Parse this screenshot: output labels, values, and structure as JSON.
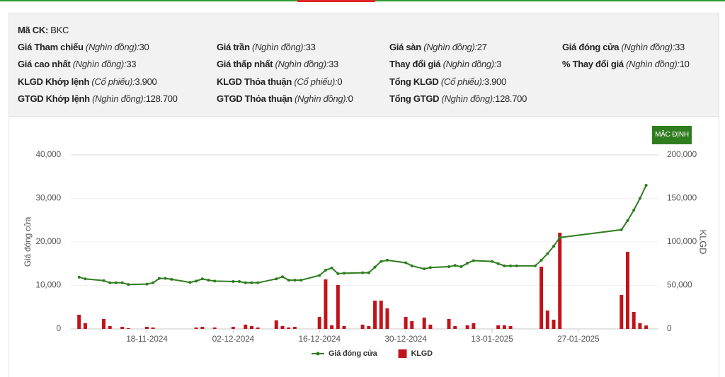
{
  "info": {
    "code": {
      "label": "Mã CK:",
      "value": "BKC"
    },
    "rows": [
      [
        {
          "label": "Giá Tham chiếu",
          "unit": "(Nghìn đồng):",
          "value": "30"
        },
        {
          "label": "Giá trần",
          "unit": "(Nghìn đồng):",
          "value": "33"
        },
        {
          "label": "Giá sàn",
          "unit": "(Nghìn đồng):",
          "value": "27"
        },
        {
          "label": "Giá đóng cửa",
          "unit": "(Nghìn đồng):",
          "value": "33"
        }
      ],
      [
        {
          "label": "Giá cao nhất",
          "unit": "(Nghìn đồng):",
          "value": "33"
        },
        {
          "label": "Giá thấp nhất",
          "unit": "(Nghìn đồng):",
          "value": "33"
        },
        {
          "label": "Thay đổi giá",
          "unit": "(Nghìn đồng):",
          "value": "3"
        },
        {
          "label": "% Thay đổi giá",
          "unit": "(Nghìn đồng):",
          "value": "10"
        }
      ],
      [
        {
          "label": "KLGD Khớp lệnh",
          "unit": "(Cổ phiếu):",
          "value": "3.900"
        },
        {
          "label": "KLGD Thỏa thuận",
          "unit": "(Cổ phiếu):",
          "value": "0"
        },
        {
          "label": "Tổng KLGD",
          "unit": "(Cổ phiếu):",
          "value": "3.900"
        }
      ],
      [
        {
          "label": "GTGD Khớp lệnh",
          "unit": "(Nghìn đồng):",
          "value": "128.700"
        },
        {
          "label": "GTGD Thỏa thuận",
          "unit": "(Nghìn đồng):",
          "value": "0"
        },
        {
          "label": "Tổng GTGD",
          "unit": "(Nghìn đồng):",
          "value": "128.700"
        }
      ]
    ]
  },
  "button": "MẶC ĐỊNH",
  "chart_data": {
    "type": "combo",
    "x": [
      "07-11-2024",
      "08-11-2024",
      "11-11-2024",
      "12-11-2024",
      "13-11-2024",
      "14-11-2024",
      "15-11-2024",
      "18-11-2024",
      "19-11-2024",
      "20-11-2024",
      "21-11-2024",
      "22-11-2024",
      "25-11-2024",
      "26-11-2024",
      "27-11-2024",
      "28-11-2024",
      "29-11-2024",
      "02-12-2024",
      "03-12-2024",
      "04-12-2024",
      "05-12-2024",
      "06-12-2024",
      "09-12-2024",
      "10-12-2024",
      "11-12-2024",
      "12-12-2024",
      "13-12-2024",
      "16-12-2024",
      "17-12-2024",
      "18-12-2024",
      "19-12-2024",
      "20-12-2024",
      "23-12-2024",
      "24-12-2024",
      "25-12-2024",
      "26-12-2024",
      "27-12-2024",
      "30-12-2024",
      "31-12-2024",
      "02-01-2025",
      "03-01-2025",
      "06-01-2025",
      "07-01-2025",
      "08-01-2025",
      "09-01-2025",
      "10-01-2025",
      "13-01-2025",
      "14-01-2025",
      "15-01-2025",
      "16-01-2025",
      "17-01-2025",
      "20-01-2025",
      "21-01-2025",
      "22-01-2025",
      "23-01-2025",
      "24-01-2025",
      "03-02-2025",
      "04-02-2025",
      "05-02-2025",
      "06-02-2025",
      "07-02-2025"
    ],
    "xlim": [
      "06-11-2024",
      "09-02-2025"
    ],
    "xticks": [
      "18-11-2024",
      "02-12-2024",
      "16-12-2024",
      "30-12-2024",
      "13-01-2025",
      "27-01-2025"
    ],
    "ylabel": "Giá đóng cửa",
    "ylim": [
      0,
      40000
    ],
    "yticks": [
      0,
      {
        "value": 10000,
        "label": "10,000"
      },
      {
        "value": 20000,
        "label": "20,000"
      },
      {
        "value": 30000,
        "label": "30,000"
      },
      {
        "value": 40000,
        "label": "40,000"
      }
    ],
    "y2label": "KLGD",
    "y2lim": [
      0,
      200000
    ],
    "y2ticks": [
      0,
      {
        "value": 50000,
        "label": "50,000"
      },
      {
        "value": 100000,
        "label": "100,000"
      },
      {
        "value": 150000,
        "label": "150,000"
      },
      {
        "value": 200000,
        "label": "200,000"
      }
    ],
    "grid": true,
    "legend": "bottom",
    "series": [
      {
        "name": "Giá đóng cửa",
        "type": "line",
        "color": "#2e7d1e",
        "values": [
          11900,
          11500,
          11100,
          10600,
          10600,
          10600,
          10200,
          10300,
          10600,
          11600,
          11600,
          11400,
          10700,
          11000,
          11500,
          11200,
          11000,
          10900,
          10900,
          10600,
          10600,
          10600,
          11500,
          12000,
          11200,
          11200,
          11200,
          12300,
          13500,
          14000,
          12700,
          12800,
          12900,
          12900,
          14200,
          15500,
          15800,
          15200,
          14500,
          13800,
          14100,
          14300,
          14600,
          14300,
          15100,
          15700,
          15500,
          15000,
          14500,
          14500,
          14500,
          14500,
          15800,
          17300,
          19000,
          21000,
          22800,
          24900,
          27300,
          30000,
          33000
        ]
      },
      {
        "name": "KLGD",
        "type": "bar",
        "color": "#c0141a",
        "axis": "y2",
        "values": [
          16300,
          6500,
          11400,
          3300,
          0,
          2400,
          800,
          2400,
          1600,
          0,
          0,
          0,
          0,
          1600,
          2400,
          0,
          1600,
          2400,
          0,
          4900,
          3300,
          1600,
          9800,
          3300,
          1600,
          2400,
          0,
          13800,
          56900,
          4100,
          50400,
          3300,
          4900,
          3300,
          32500,
          32500,
          23600,
          13800,
          8900,
          13000,
          4900,
          11400,
          3300,
          0,
          4100,
          6500,
          0,
          4100,
          4100,
          3300,
          0,
          0,
          71500,
          21100,
          10600,
          110600,
          39000,
          88600,
          19500,
          6500,
          3900
        ]
      }
    ]
  }
}
